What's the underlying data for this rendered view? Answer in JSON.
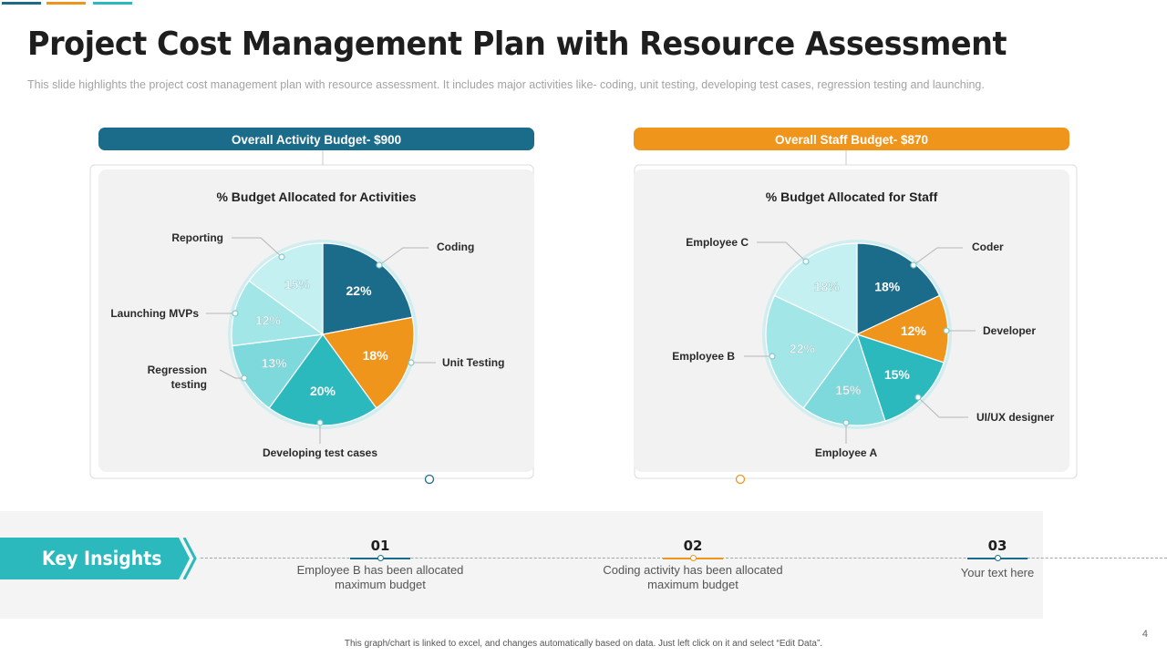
{
  "header": {
    "title": "Project Cost Management Plan with Resource Assessment",
    "subtitle": "This slide highlights the project cost management  plan with resource assessment. It includes major activities like- coding, unit testing, developing  test cases, regression  testing and launching."
  },
  "colors": {
    "dark_blue": "#1b6b8a",
    "orange": "#f0951c",
    "teal": "#2bb9bd",
    "light_teal": "#7dd9db",
    "pale_teal": "#a3e6e8",
    "paler_teal": "#c5f0f1"
  },
  "chart_data": [
    {
      "type": "pie",
      "banner": "Overall Activity Budget- $900",
      "title": "% Budget Allocated for Activities",
      "slices": [
        {
          "label": "Coding",
          "value": 22,
          "display": "22%",
          "color": "#1b6b8a"
        },
        {
          "label": "Unit Testing",
          "value": 18,
          "display": "18%",
          "color": "#f0951c"
        },
        {
          "label": "Developing  test cases",
          "value": 20,
          "display": "20%",
          "color": "#2bb9bd"
        },
        {
          "label": "Regression testing",
          "value": 13,
          "display": "13%",
          "color": "#7dd9db"
        },
        {
          "label": "Launching  MVPs",
          "value": 12,
          "display": "12%",
          "color": "#a3e6e8"
        },
        {
          "label": "Reporting",
          "value": 15,
          "display": "15%",
          "color": "#c5f0f1"
        }
      ]
    },
    {
      "type": "pie",
      "banner": "Overall Staff Budget- $870",
      "title": "% Budget Allocated for Staff",
      "slices": [
        {
          "label": "Coder",
          "value": 18,
          "display": "18%",
          "color": "#1b6b8a"
        },
        {
          "label": "Developer",
          "value": 12,
          "display": "12%",
          "color": "#f0951c"
        },
        {
          "label": "UI/UX designer",
          "value": 15,
          "display": "15%",
          "color": "#2bb9bd"
        },
        {
          "label": "Employee A",
          "value": 15,
          "display": "15%",
          "color": "#7dd9db"
        },
        {
          "label": "Employee B",
          "value": 22,
          "display": "22%",
          "color": "#a3e6e8"
        },
        {
          "label": "Employee C",
          "value": 18,
          "display": "18%",
          "color": "#c5f0f1"
        }
      ]
    }
  ],
  "key_insights": {
    "label": "Key Insights",
    "items": [
      {
        "num": "01",
        "text": "Employee B has been allocated maximum budget"
      },
      {
        "num": "02",
        "text": "Coding  activity has been allocated maximum budget"
      },
      {
        "num": "03",
        "text": "Your text here"
      }
    ]
  },
  "footnote": "This graph/chart is linked to excel, and changes automatically based on data. Just left click on it and select “Edit Data”.",
  "page_number": "4"
}
